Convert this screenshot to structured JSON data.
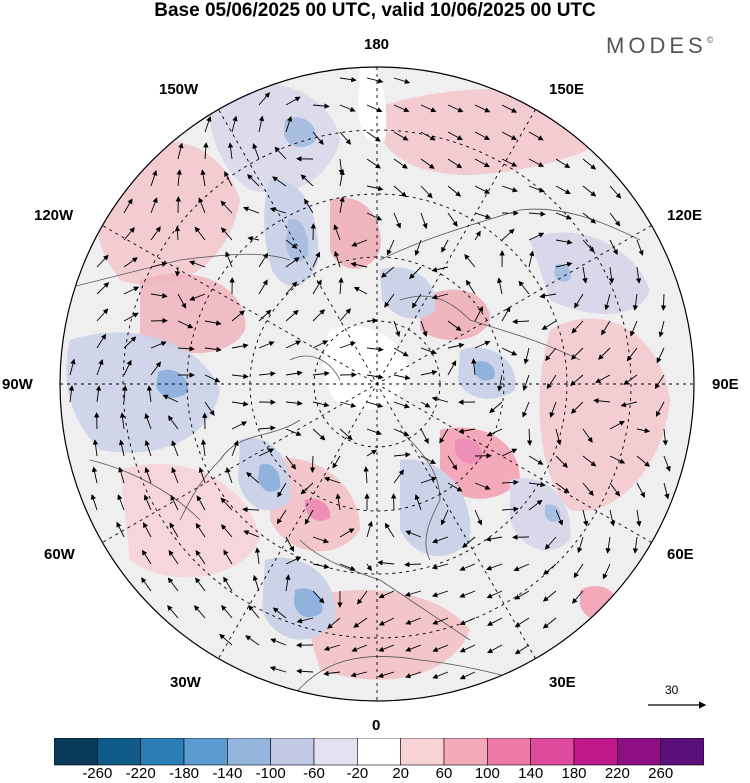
{
  "title": "Base 05/06/2025 00 UTC, valid 10/06/2025 00 UTC",
  "brand": "MODES",
  "brand_mark": "©",
  "longitude_labels": {
    "n180": "180",
    "e150": "150E",
    "e120": "120E",
    "e90": "90E",
    "e60": "60E",
    "e30": "30E",
    "n0": "0",
    "w30": "30W",
    "w60": "60W",
    "w90": "90W",
    "w120": "120W",
    "w150": "150W"
  },
  "wind_reference": {
    "value": "30"
  },
  "colorbar": {
    "ticks": [
      "-260",
      "-220",
      "-180",
      "-140",
      "-100",
      "-60",
      "-20",
      "20",
      "60",
      "100",
      "140",
      "180",
      "220",
      "260"
    ],
    "colors": [
      "#0b3b5c",
      "#0f5c8a",
      "#2a7db6",
      "#5c9cd0",
      "#93b5de",
      "#c1c9e4",
      "#e3e1ef",
      "#ffffff",
      "#f7d2d6",
      "#f3a9b9",
      "#ee7aa6",
      "#e04a9c",
      "#c0198a",
      "#8e0f83",
      "#5a0f7a"
    ]
  },
  "map_colors": {
    "background": "#efefef",
    "land": "#e4e4e4",
    "positive": "#f2c6ca",
    "strong_positive": "#ee8fb8",
    "negative": "#ccd2e8",
    "strong_negative": "#8fb3dd",
    "neutral": "#ffffff"
  }
}
